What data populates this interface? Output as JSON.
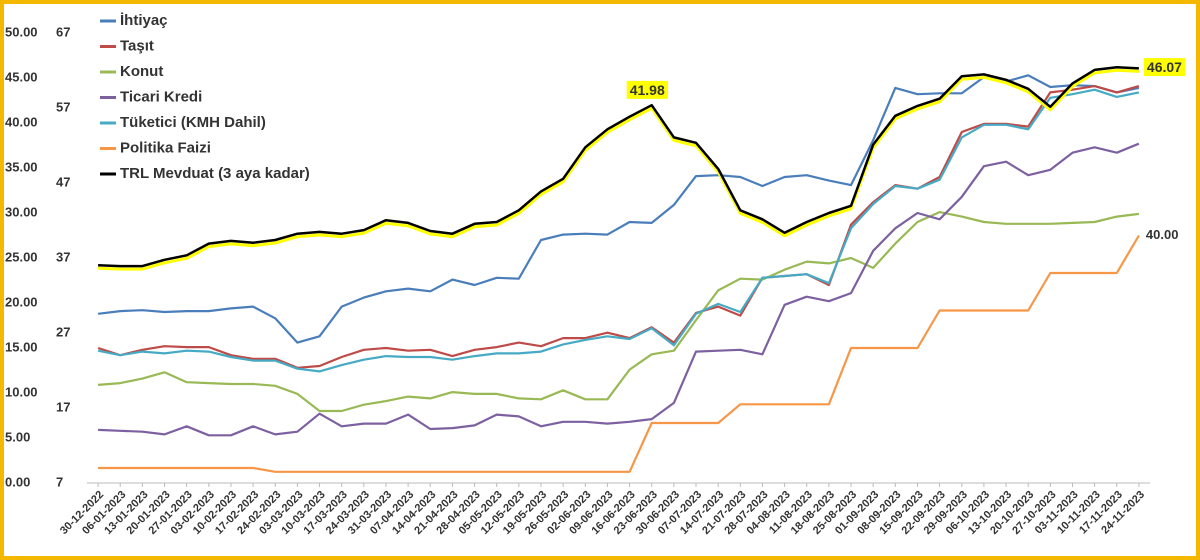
{
  "chart_data": {
    "type": "line",
    "categories": [
      "30-12-2022",
      "06-01-2023",
      "13-01-2023",
      "20-01-2023",
      "27-01-2023",
      "03-02-2023",
      "10-02-2023",
      "17-02-2023",
      "24-02-2023",
      "03-03-2023",
      "10-03-2023",
      "17-03-2023",
      "24-03-2023",
      "31-03-2023",
      "07-04-2023",
      "14-04-2023",
      "21-04-2023",
      "28-04-2023",
      "05-05-2023",
      "12-05-2023",
      "19-05-2023",
      "26-05-2023",
      "02-06-2023",
      "09-06-2023",
      "16-06-2023",
      "23-06-2023",
      "30-06-2023",
      "07-07-2023",
      "14-07-2023",
      "21-07-2023",
      "28-07-2023",
      "04-08-2023",
      "11-08-2023",
      "18-08-2023",
      "25-08-2023",
      "01-09-2023",
      "08-09-2023",
      "15-09-2023",
      "22-09-2023",
      "29-09-2023",
      "06-10-2023",
      "13-10-2023",
      "20-10-2023",
      "27-10-2023",
      "03-11-2023",
      "10-11-2023",
      "17-11-2023",
      "24-11-2023"
    ],
    "series": [
      {
        "name": "İhtiyaç",
        "color": "#4a7ebb",
        "values": [
          18.8,
          19.1,
          19.2,
          19.0,
          19.1,
          19.1,
          19.4,
          19.6,
          18.3,
          15.6,
          16.3,
          19.6,
          20.6,
          21.3,
          21.6,
          21.3,
          22.6,
          22.0,
          22.8,
          22.7,
          27.0,
          27.6,
          27.7,
          27.6,
          29.0,
          28.9,
          30.9,
          34.1,
          34.2,
          34.0,
          33.0,
          34.0,
          34.2,
          33.6,
          33.1,
          38.1,
          43.9,
          43.2,
          43.3,
          43.3,
          45.1,
          44.6,
          45.3,
          44.0,
          44.2,
          44.1,
          43.4,
          43.9
        ]
      },
      {
        "name": "Taşıt",
        "color": "#be4b48",
        "values": [
          15.0,
          14.2,
          14.8,
          15.2,
          15.1,
          15.1,
          14.2,
          13.8,
          13.8,
          12.8,
          13.0,
          14.0,
          14.8,
          15.0,
          14.7,
          14.8,
          14.1,
          14.8,
          15.1,
          15.6,
          15.2,
          16.1,
          16.1,
          16.7,
          16.1,
          17.3,
          15.6,
          18.9,
          19.6,
          18.6,
          22.8,
          23.0,
          23.2,
          22.0,
          28.7,
          31.2,
          33.1,
          32.7,
          34.0,
          39.0,
          39.9,
          39.9,
          39.6,
          43.4,
          43.7,
          44.1,
          43.4,
          44.1
        ]
      },
      {
        "name": "Konut",
        "color": "#98b954",
        "values": [
          10.9,
          11.1,
          11.6,
          12.3,
          11.2,
          11.1,
          11.0,
          11.0,
          10.8,
          9.9,
          8.0,
          8.0,
          8.7,
          9.1,
          9.6,
          9.4,
          10.1,
          9.9,
          9.9,
          9.4,
          9.3,
          10.3,
          9.3,
          9.3,
          12.6,
          14.3,
          14.7,
          18.1,
          21.4,
          22.7,
          22.6,
          23.7,
          24.6,
          24.4,
          25.0,
          23.9,
          26.6,
          29.0,
          30.1,
          29.6,
          29.0,
          28.8,
          28.8,
          28.8,
          28.9,
          29.0,
          29.6,
          29.9
        ]
      },
      {
        "name": "Ticari Kredi",
        "color": "#7d60a0",
        "values": [
          5.9,
          5.8,
          5.7,
          5.4,
          6.3,
          5.3,
          5.3,
          6.3,
          5.4,
          5.7,
          7.7,
          6.3,
          6.6,
          6.6,
          7.6,
          6.0,
          6.1,
          6.4,
          7.6,
          7.4,
          6.3,
          6.8,
          6.8,
          6.6,
          6.8,
          7.1,
          8.9,
          14.6,
          14.7,
          14.8,
          14.3,
          19.8,
          20.7,
          20.2,
          21.1,
          25.8,
          28.3,
          30.0,
          29.3,
          31.8,
          35.2,
          35.7,
          34.2,
          34.8,
          36.7,
          37.3,
          36.7,
          37.7
        ]
      },
      {
        "name": "Tüketici (KMH Dahil)",
        "color": "#46aac5",
        "values": [
          14.7,
          14.2,
          14.6,
          14.4,
          14.7,
          14.6,
          14.0,
          13.6,
          13.6,
          12.7,
          12.4,
          13.1,
          13.7,
          14.1,
          14.0,
          14.0,
          13.7,
          14.1,
          14.4,
          14.4,
          14.6,
          15.4,
          15.9,
          16.3,
          16.0,
          17.2,
          15.3,
          18.8,
          19.9,
          19.0,
          22.8,
          23.0,
          23.2,
          22.2,
          28.3,
          31.0,
          33.0,
          32.7,
          33.7,
          38.4,
          39.8,
          39.8,
          39.3,
          42.8,
          43.2,
          43.7,
          42.9,
          43.4
        ]
      },
      {
        "name": "Politika Faizi",
        "color": "#f79646",
        "axis": "y2",
        "values": [
          9,
          9,
          9,
          9,
          9,
          9,
          9,
          9,
          8.5,
          8.5,
          8.5,
          8.5,
          8.5,
          8.5,
          8.5,
          8.5,
          8.5,
          8.5,
          8.5,
          8.5,
          8.5,
          8.5,
          8.5,
          8.5,
          8.5,
          15,
          15,
          15,
          15,
          17.5,
          17.5,
          17.5,
          17.5,
          17.5,
          25,
          25,
          25,
          25,
          30,
          30,
          30,
          30,
          30,
          35,
          35,
          35,
          35,
          40
        ],
        "value_labels": [
          null,
          null,
          null,
          null,
          null,
          null,
          null,
          null,
          null,
          null,
          null,
          null,
          null,
          null,
          null,
          null,
          null,
          null,
          null,
          null,
          null,
          null,
          null,
          null,
          null,
          null,
          null,
          null,
          null,
          null,
          null,
          null,
          null,
          null,
          null,
          null,
          null,
          null,
          null,
          null,
          null,
          null,
          null,
          null,
          null,
          null,
          null,
          "40.00"
        ]
      },
      {
        "name": "TRL Mevduat (3 aya kadar)",
        "color": "#000000",
        "glow": "#ffff00",
        "label_fill": "#ffff00",
        "values": [
          24.2,
          24.1,
          24.1,
          24.8,
          25.3,
          26.6,
          26.9,
          26.7,
          27.0,
          27.7,
          27.9,
          27.7,
          28.1,
          29.2,
          28.9,
          28.0,
          27.7,
          28.8,
          29.0,
          30.3,
          32.4,
          33.8,
          37.3,
          39.3,
          40.7,
          41.98,
          38.4,
          37.8,
          34.9,
          30.3,
          29.3,
          27.8,
          29.0,
          30.0,
          30.8,
          37.6,
          40.8,
          41.9,
          42.7,
          45.2,
          45.4,
          44.8,
          43.8,
          41.8,
          44.4,
          45.9,
          46.2,
          46.07
        ]
      }
    ],
    "ylim": [
      0,
      50
    ],
    "yticks": [
      {
        "value": 0,
        "label": "0.00"
      },
      {
        "value": 5,
        "label": "5.00"
      },
      {
        "value": 10,
        "label": "10.00"
      },
      {
        "value": 15,
        "label": "15.00"
      },
      {
        "value": 20,
        "label": "20.00"
      },
      {
        "value": 25,
        "label": "25.00"
      },
      {
        "value": 30,
        "label": "30.00"
      },
      {
        "value": 35,
        "label": "35.00"
      },
      {
        "value": 40,
        "label": "40.00"
      },
      {
        "value": 45,
        "label": "45.00"
      },
      {
        "value": 50,
        "label": "50.00"
      }
    ],
    "y2lim": [
      7,
      67
    ],
    "y2ticks": [
      7,
      17,
      27,
      37,
      47,
      57,
      67
    ],
    "grid": false,
    "legend": "top-left"
  }
}
